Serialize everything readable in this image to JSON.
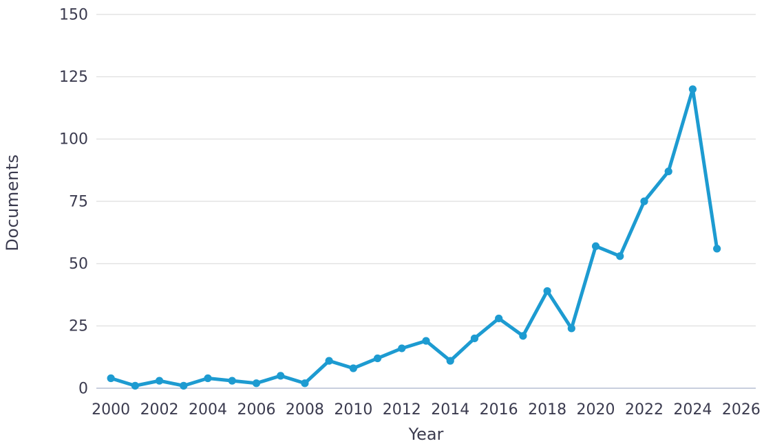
{
  "page": {
    "background_color": "#ffffff",
    "text_color": "#3b3b4f"
  },
  "chart_data": {
    "type": "line",
    "title": "",
    "xlabel": "Year",
    "ylabel": "Documents",
    "x": [
      2000,
      2001,
      2002,
      2003,
      2004,
      2005,
      2006,
      2007,
      2008,
      2009,
      2010,
      2011,
      2012,
      2013,
      2014,
      2015,
      2016,
      2017,
      2018,
      2019,
      2020,
      2021,
      2022,
      2023,
      2024,
      2025
    ],
    "series": [
      {
        "name": "Documents",
        "values": [
          4,
          1,
          3,
          1,
          4,
          3,
          2,
          5,
          2,
          11,
          8,
          12,
          16,
          19,
          11,
          20,
          28,
          21,
          39,
          24,
          57,
          53,
          75,
          87,
          120,
          56
        ]
      }
    ],
    "xlim": [
      1999.4,
      2026.6
    ],
    "ylim": [
      0,
      150
    ],
    "yticks": [
      0,
      25,
      50,
      75,
      100,
      125,
      150
    ],
    "xticks": [
      2000,
      2002,
      2004,
      2006,
      2008,
      2010,
      2012,
      2014,
      2016,
      2018,
      2020,
      2022,
      2024,
      2026
    ],
    "grid": "horizontal",
    "legend": "none",
    "line_color": "#1d9bd1",
    "marker": "circle",
    "marker_color": "#1d9bd1",
    "gridline_color": "#e3e3e3",
    "zeroline_color": "#c8cedd",
    "tick_label_color": "#3b3b4f"
  }
}
